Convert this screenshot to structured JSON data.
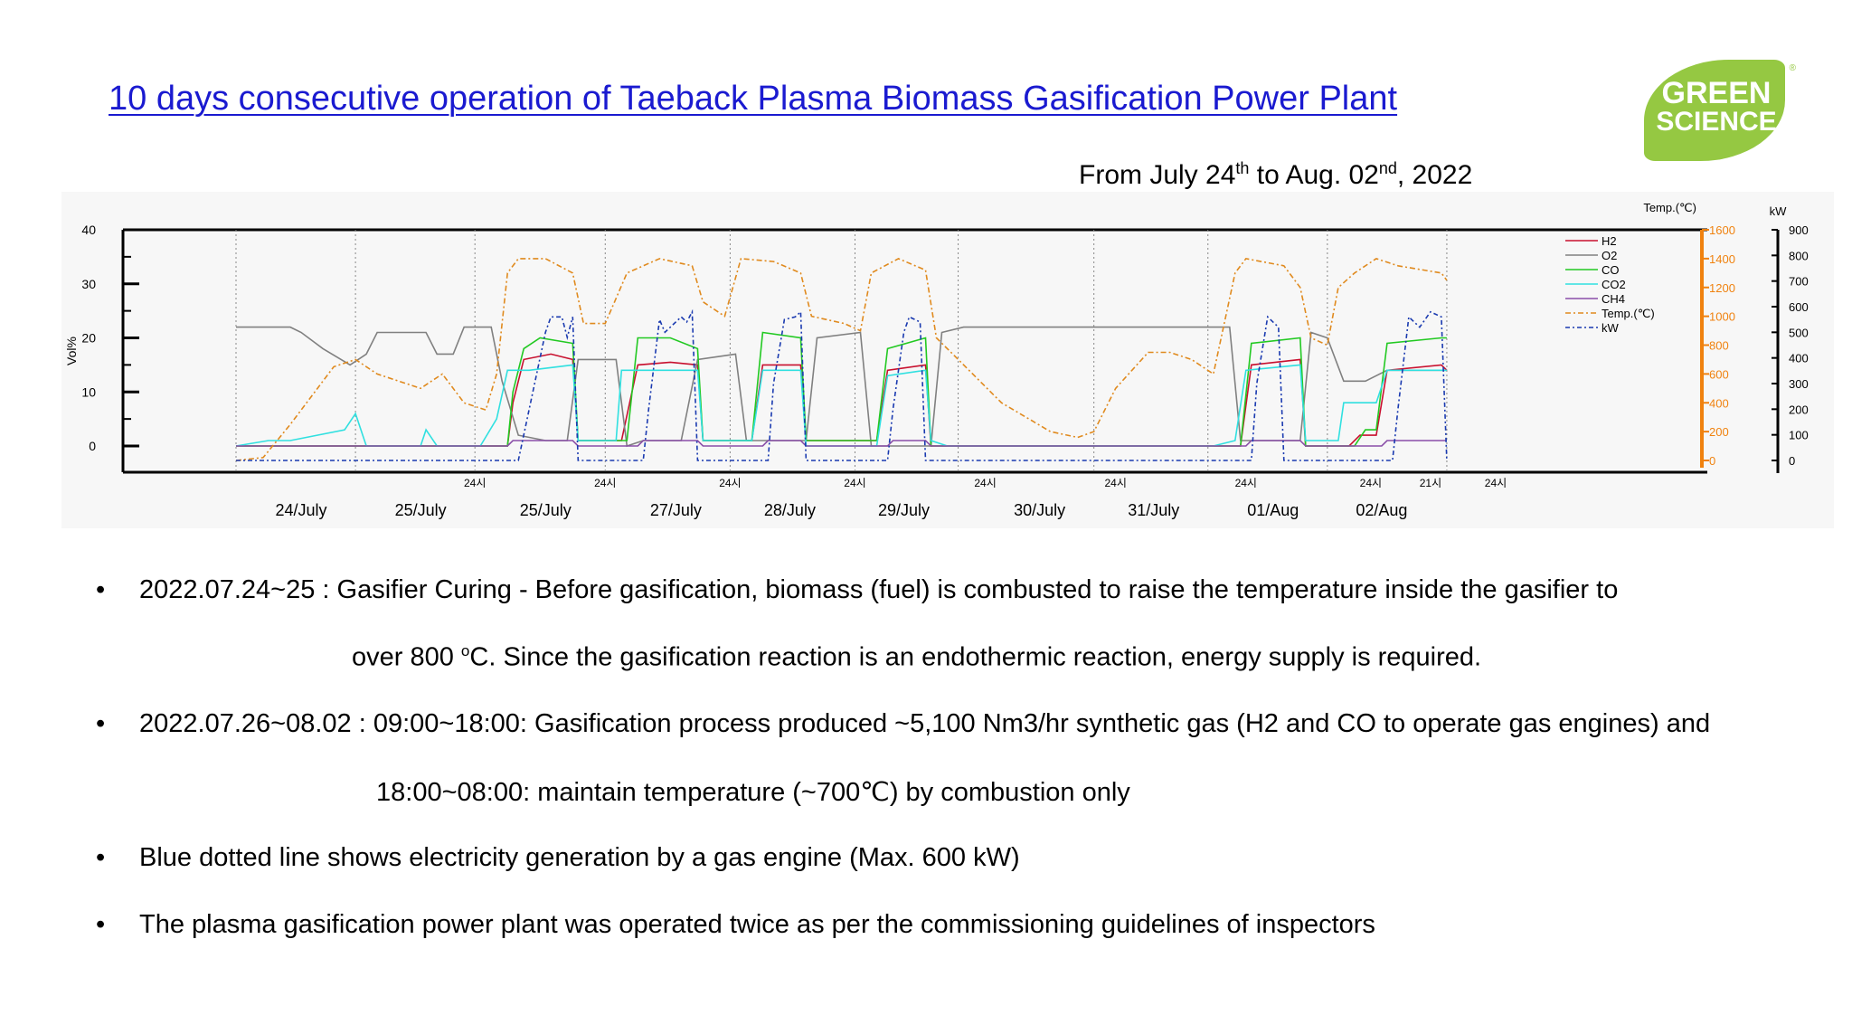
{
  "slide": {
    "title": "10 days consecutive operation of Taeback Plasma Biomass Gasification Power Plant",
    "date_prefix": "From July 24",
    "date_sup1": "th",
    "date_mid": " to Aug. 02",
    "date_sup2": "nd",
    "date_suffix": ", 2022",
    "logo_line1": "GREEN",
    "logo_line2": "SCIENCE",
    "logo_mark": "®"
  },
  "bullets": [
    {
      "bullet": "•",
      "line1": "2022.07.24~25 : Gasifier Curing - Before gasification, biomass (fuel) is combusted to raise the temperature inside the  gasifier to",
      "line2_pre": "over 800 ",
      "line2_sup": "o",
      "line2_post": "C. Since the gasification reaction is an endothermic reaction, energy supply is required."
    },
    {
      "bullet": "•",
      "line1": "2022.07.26~08.02 : 09:00~18:00: Gasification process produced ~5,100 Nm3/hr synthetic gas (H2 and CO to operate gas engines) and",
      "line2": "18:00~08:00: maintain temperature (~700℃) by combustion only"
    },
    {
      "bullet": "•",
      "line1": "Blue dotted line shows electricity generation by a gas engine (Max. 600 kW)"
    },
    {
      "bullet": "•",
      "line1": "The plasma gasification power plant was operated twice as per the commissioning guidelines of inspectors"
    }
  ],
  "colors": {
    "title": "#1a1ad0",
    "logo": "#95c842",
    "h2": "#c8102e",
    "o2": "#808080",
    "co": "#22c922",
    "co2": "#30e0e0",
    "ch4": "#8a4fa8",
    "temp": "#e08a1e",
    "kw": "#1a3ab0",
    "temp_axis": "#f0820f"
  },
  "chart_data": {
    "type": "line",
    "ylabel": "Vol%",
    "ylim": [
      -5,
      40
    ],
    "y_ticks": [
      "40",
      "30",
      "20",
      "10",
      "0"
    ],
    "y_tick_values": [
      40,
      30,
      20,
      10,
      0
    ],
    "temp_axis_label": "Temp.(℃)",
    "temp_ticks": [
      "1600",
      "1400",
      "1200",
      "1000",
      "800",
      "600",
      "400",
      "200",
      "0"
    ],
    "temp_tick_values": [
      1600,
      1400,
      1200,
      1000,
      800,
      600,
      400,
      200,
      0
    ],
    "kw_axis_label": "kW",
    "kw_ticks": [
      "900",
      "800",
      "700",
      "600",
      "500",
      "400",
      "300",
      "200",
      "100",
      "0"
    ],
    "kw_tick_values": [
      900,
      800,
      700,
      600,
      500,
      400,
      300,
      200,
      100,
      0
    ],
    "time_range_hours": [
      0,
      237
    ],
    "day_labels": [
      "24/July",
      "25/July",
      "25/July",
      "27/July",
      "28/July",
      "29/July",
      "30/July",
      "31/July",
      "01/Aug",
      "02/Aug"
    ],
    "day_label_hours": [
      12,
      34,
      57,
      81,
      102,
      123,
      148,
      169,
      191,
      211
    ],
    "separator_hours": [
      0,
      22,
      44,
      68,
      91,
      114,
      133,
      158,
      179,
      201,
      223
    ],
    "hour_labels": [
      "24시",
      "24시",
      "24시",
      "24시",
      "24시",
      "24시",
      "24시",
      "24시",
      "24시",
      "21시"
    ],
    "hour_label_hours": [
      44,
      68,
      91,
      114,
      138,
      162,
      186,
      209,
      232,
      220
    ],
    "legend_position": "right",
    "legend": [
      "H2",
      "O2",
      "CO",
      "CO2",
      "CH4",
      "Temp.(℃)",
      "kW"
    ],
    "series": [
      {
        "name": "H2",
        "axis": "vol",
        "points": [
          [
            0,
            0
          ],
          [
            50,
            0
          ],
          [
            51,
            8
          ],
          [
            53,
            16
          ],
          [
            58,
            17
          ],
          [
            62,
            16
          ],
          [
            63,
            1
          ],
          [
            71,
            1
          ],
          [
            74,
            15
          ],
          [
            80,
            15.5
          ],
          [
            85,
            15
          ],
          [
            86,
            1
          ],
          [
            95,
            1
          ],
          [
            97,
            15
          ],
          [
            104,
            15
          ],
          [
            105,
            1
          ],
          [
            118,
            1
          ],
          [
            120,
            14
          ],
          [
            127,
            15
          ],
          [
            128,
            0
          ],
          [
            185,
            0
          ],
          [
            187,
            15
          ],
          [
            196,
            16
          ],
          [
            197,
            0
          ],
          [
            205,
            0
          ],
          [
            207,
            2
          ],
          [
            210,
            2
          ],
          [
            212,
            14
          ],
          [
            222,
            15
          ],
          [
            223,
            14
          ]
        ]
      },
      {
        "name": "O2",
        "axis": "vol",
        "points": [
          [
            0,
            22
          ],
          [
            10,
            22
          ],
          [
            12,
            21
          ],
          [
            16,
            18
          ],
          [
            21,
            15
          ],
          [
            24,
            17
          ],
          [
            26,
            21
          ],
          [
            35,
            21
          ],
          [
            37,
            17
          ],
          [
            40,
            17
          ],
          [
            42,
            22
          ],
          [
            47,
            22
          ],
          [
            49,
            12
          ],
          [
            52,
            2
          ],
          [
            57,
            1
          ],
          [
            61,
            1
          ],
          [
            63,
            16
          ],
          [
            70,
            16
          ],
          [
            72,
            0
          ],
          [
            75,
            1
          ],
          [
            79,
            1
          ],
          [
            82,
            1
          ],
          [
            85,
            16
          ],
          [
            92,
            17
          ],
          [
            94,
            1
          ],
          [
            97,
            1
          ],
          [
            100,
            1
          ],
          [
            105,
            1
          ],
          [
            107,
            20
          ],
          [
            115,
            21
          ],
          [
            117,
            0
          ],
          [
            122,
            0
          ],
          [
            128,
            0
          ],
          [
            130,
            21
          ],
          [
            134,
            22
          ],
          [
            180,
            22
          ],
          [
            183,
            22
          ],
          [
            185,
            1
          ],
          [
            196,
            1
          ],
          [
            198,
            21
          ],
          [
            201,
            20
          ],
          [
            204,
            12
          ],
          [
            208,
            12
          ],
          [
            210,
            13
          ],
          [
            212,
            14
          ],
          [
            223,
            14
          ]
        ]
      },
      {
        "name": "CO",
        "axis": "vol",
        "points": [
          [
            0,
            0
          ],
          [
            50,
            0
          ],
          [
            51,
            10
          ],
          [
            53,
            18
          ],
          [
            56,
            20
          ],
          [
            62,
            19
          ],
          [
            63,
            1
          ],
          [
            72,
            1
          ],
          [
            74,
            20
          ],
          [
            80,
            20
          ],
          [
            85,
            18
          ],
          [
            86,
            1
          ],
          [
            95,
            1
          ],
          [
            97,
            21
          ],
          [
            104,
            20
          ],
          [
            105,
            1
          ],
          [
            118,
            1
          ],
          [
            120,
            18
          ],
          [
            127,
            20
          ],
          [
            128,
            0
          ],
          [
            185,
            0
          ],
          [
            187,
            19
          ],
          [
            196,
            20
          ],
          [
            197,
            0
          ],
          [
            206,
            0
          ],
          [
            208,
            3
          ],
          [
            210,
            3
          ],
          [
            212,
            19
          ],
          [
            222,
            20
          ],
          [
            223,
            20
          ]
        ]
      },
      {
        "name": "CO2",
        "axis": "vol",
        "points": [
          [
            0,
            0
          ],
          [
            6,
            1
          ],
          [
            10,
            1
          ],
          [
            20,
            3
          ],
          [
            22,
            6
          ],
          [
            24,
            0
          ],
          [
            34,
            0
          ],
          [
            35,
            3
          ],
          [
            37,
            0
          ],
          [
            45,
            0
          ],
          [
            48,
            5
          ],
          [
            50,
            14
          ],
          [
            54,
            14
          ],
          [
            62,
            15
          ],
          [
            63,
            1
          ],
          [
            70,
            1
          ],
          [
            71,
            14
          ],
          [
            80,
            14
          ],
          [
            85,
            14
          ],
          [
            86,
            1
          ],
          [
            95,
            1
          ],
          [
            97,
            14
          ],
          [
            104,
            14
          ],
          [
            105,
            0
          ],
          [
            118,
            0
          ],
          [
            120,
            13
          ],
          [
            127,
            14
          ],
          [
            128,
            1
          ],
          [
            131,
            0
          ],
          [
            180,
            0
          ],
          [
            184,
            1
          ],
          [
            186,
            14
          ],
          [
            196,
            15
          ],
          [
            197,
            1
          ],
          [
            203,
            1
          ],
          [
            204,
            8
          ],
          [
            210,
            8
          ],
          [
            212,
            14
          ],
          [
            223,
            14
          ]
        ]
      },
      {
        "name": "CH4",
        "axis": "vol",
        "points": [
          [
            0,
            0
          ],
          [
            50,
            0
          ],
          [
            51,
            1
          ],
          [
            62,
            1
          ],
          [
            63,
            0
          ],
          [
            74,
            0
          ],
          [
            75,
            1
          ],
          [
            85,
            1
          ],
          [
            86,
            0
          ],
          [
            97,
            0
          ],
          [
            98,
            1
          ],
          [
            104,
            1
          ],
          [
            105,
            0
          ],
          [
            120,
            0
          ],
          [
            121,
            1
          ],
          [
            127,
            1
          ],
          [
            128,
            0
          ],
          [
            186,
            0
          ],
          [
            187,
            1
          ],
          [
            196,
            1
          ],
          [
            197,
            0
          ],
          [
            211,
            0
          ],
          [
            212,
            1
          ],
          [
            223,
            1
          ]
        ]
      },
      {
        "name": "Temp.(℃)",
        "axis": "temp",
        "points": [
          [
            0,
            0
          ],
          [
            5,
            20
          ],
          [
            10,
            250
          ],
          [
            18,
            650
          ],
          [
            22,
            700
          ],
          [
            26,
            600
          ],
          [
            34,
            500
          ],
          [
            38,
            600
          ],
          [
            42,
            400
          ],
          [
            46,
            350
          ],
          [
            48,
            600
          ],
          [
            50,
            1300
          ],
          [
            52,
            1400
          ],
          [
            57,
            1400
          ],
          [
            62,
            1300
          ],
          [
            64,
            950
          ],
          [
            68,
            950
          ],
          [
            72,
            1300
          ],
          [
            78,
            1400
          ],
          [
            84,
            1350
          ],
          [
            86,
            1100
          ],
          [
            90,
            1000
          ],
          [
            93,
            1400
          ],
          [
            99,
            1380
          ],
          [
            104,
            1300
          ],
          [
            106,
            1000
          ],
          [
            112,
            950
          ],
          [
            115,
            900
          ],
          [
            117,
            1300
          ],
          [
            122,
            1400
          ],
          [
            127,
            1320
          ],
          [
            129,
            850
          ],
          [
            133,
            700
          ],
          [
            141,
            400
          ],
          [
            150,
            200
          ],
          [
            155,
            160
          ],
          [
            158,
            200
          ],
          [
            162,
            500
          ],
          [
            168,
            750
          ],
          [
            172,
            750
          ],
          [
            176,
            700
          ],
          [
            180,
            600
          ],
          [
            184,
            1300
          ],
          [
            186,
            1400
          ],
          [
            193,
            1350
          ],
          [
            196,
            1200
          ],
          [
            198,
            850
          ],
          [
            201,
            800
          ],
          [
            203,
            1200
          ],
          [
            206,
            1300
          ],
          [
            210,
            1400
          ],
          [
            214,
            1350
          ],
          [
            222,
            1300
          ],
          [
            223,
            1250
          ]
        ]
      },
      {
        "name": "kW",
        "axis": "kw",
        "points": [
          [
            0,
            0
          ],
          [
            52,
            0
          ],
          [
            53,
            100
          ],
          [
            55,
            300
          ],
          [
            57,
            500
          ],
          [
            58,
            560
          ],
          [
            60,
            560
          ],
          [
            61,
            480
          ],
          [
            62,
            560
          ],
          [
            63,
            0
          ],
          [
            75,
            0
          ],
          [
            76,
            200
          ],
          [
            78,
            550
          ],
          [
            79,
            500
          ],
          [
            82,
            560
          ],
          [
            83,
            540
          ],
          [
            84,
            580
          ],
          [
            85,
            0
          ],
          [
            98,
            0
          ],
          [
            99,
            300
          ],
          [
            101,
            550
          ],
          [
            103,
            560
          ],
          [
            104,
            580
          ],
          [
            105,
            0
          ],
          [
            120,
            0
          ],
          [
            121,
            200
          ],
          [
            123,
            500
          ],
          [
            124,
            560
          ],
          [
            126,
            540
          ],
          [
            127,
            0
          ],
          [
            187,
            0
          ],
          [
            188,
            300
          ],
          [
            190,
            560
          ],
          [
            192,
            520
          ],
          [
            193,
            0
          ],
          [
            213,
            0
          ],
          [
            214,
            200
          ],
          [
            216,
            560
          ],
          [
            218,
            520
          ],
          [
            220,
            580
          ],
          [
            222,
            560
          ],
          [
            223,
            0
          ]
        ]
      }
    ]
  }
}
